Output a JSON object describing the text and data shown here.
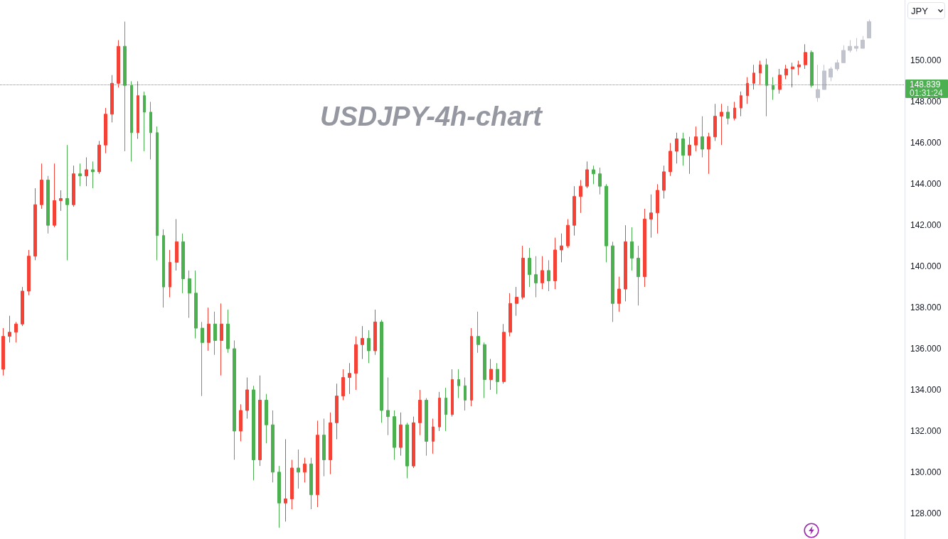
{
  "chart_data": {
    "type": "candlestick",
    "title": "USDJPY-4h-chart",
    "ylabel": "JPY",
    "annotations": [
      "01:31:24"
    ],
    "tick_labels": "y",
    "ylim": [
      126.75,
      152.95
    ],
    "yticks": [
      {
        "value": 128,
        "label": "128.000"
      },
      {
        "value": 130,
        "label": "130.000"
      },
      {
        "value": 132,
        "label": "132.000"
      },
      {
        "value": 134,
        "label": "134.000"
      },
      {
        "value": 136,
        "label": "136.000"
      },
      {
        "value": 138,
        "label": "138.000"
      },
      {
        "value": 140,
        "label": "140.000"
      },
      {
        "value": 142,
        "label": "142.000"
      },
      {
        "value": 144,
        "label": "144.000"
      },
      {
        "value": 146,
        "label": "146.000"
      },
      {
        "value": 148,
        "label": "148.000"
      },
      {
        "value": 150,
        "label": "150.000"
      }
    ],
    "ref_lines": [
      {
        "axis": "y",
        "value": 148.839,
        "label": "148.839",
        "color": "#4caf50",
        "line_style": "dotted"
      }
    ],
    "categories": [
      null,
      null,
      null,
      null,
      null,
      null,
      null,
      null,
      null,
      null,
      null,
      null,
      null,
      null,
      null,
      null,
      null,
      null,
      null,
      null,
      null,
      null,
      null,
      null,
      null,
      null,
      null,
      null,
      null,
      null,
      null,
      null,
      null,
      null,
      null,
      null,
      null,
      null,
      null,
      null,
      null,
      null,
      null,
      null,
      null,
      null,
      null,
      null,
      null,
      null,
      null,
      null,
      null,
      null,
      null,
      null,
      null,
      null,
      null,
      null,
      null,
      null,
      null,
      null,
      null,
      null,
      null,
      null,
      null,
      null,
      null,
      null,
      null,
      null,
      null,
      null,
      null,
      null,
      null,
      null,
      null,
      null,
      null,
      null,
      null,
      null,
      null,
      null,
      null,
      null,
      null,
      null,
      null,
      null,
      null,
      null,
      null,
      null,
      null,
      null,
      null,
      null,
      null,
      null,
      null,
      null,
      null,
      null,
      null,
      null,
      null,
      null,
      null,
      null,
      null,
      null,
      null,
      null,
      null,
      null,
      null,
      null,
      null,
      null,
      null,
      null,
      null,
      null,
      null,
      null,
      null,
      null,
      null,
      null,
      null,
      null,
      null,
      null,
      null,
      null,
      null
    ],
    "series": [
      {
        "ohlc": [
          [
            135.0,
            137.0,
            134.7,
            136.6
          ],
          [
            136.6,
            137.6,
            136.3,
            136.8
          ],
          [
            136.8,
            137.3,
            136.3,
            137.2
          ],
          [
            137.2,
            139.0,
            137.1,
            138.8
          ],
          [
            138.8,
            140.8,
            138.6,
            140.5
          ],
          [
            140.5,
            143.8,
            140.3,
            143.0
          ],
          [
            143.0,
            145.0,
            142.8,
            144.2
          ],
          [
            144.2,
            144.4,
            141.6,
            142.0
          ],
          [
            142.0,
            145.0,
            141.9,
            143.2
          ],
          [
            143.2,
            143.7,
            142.7,
            143.3
          ],
          [
            143.3,
            145.9,
            140.3,
            143.0
          ],
          [
            143.0,
            144.9,
            142.9,
            144.5
          ],
          [
            144.5,
            145.0,
            143.9,
            144.4
          ],
          [
            144.4,
            145.3,
            143.9,
            144.7
          ],
          [
            144.7,
            145.1,
            143.8,
            144.6
          ],
          [
            144.6,
            146.1,
            144.5,
            145.9
          ],
          [
            145.9,
            147.7,
            145.5,
            147.4
          ],
          [
            147.4,
            149.3,
            147.0,
            148.9
          ],
          [
            148.9,
            151.0,
            148.7,
            150.7
          ],
          [
            150.7,
            151.9,
            145.6,
            148.8
          ],
          [
            148.8,
            149.0,
            145.1,
            146.5
          ],
          [
            146.5,
            149.0,
            146.2,
            148.3
          ],
          [
            148.3,
            148.5,
            145.6,
            147.5
          ],
          [
            147.5,
            148.0,
            145.2,
            146.5
          ],
          [
            146.5,
            146.8,
            140.3,
            141.5
          ],
          [
            141.5,
            141.8,
            138.0,
            139.0
          ],
          [
            139.0,
            140.8,
            138.5,
            140.2
          ],
          [
            140.2,
            142.3,
            139.8,
            141.2
          ],
          [
            141.2,
            141.6,
            138.7,
            139.4
          ],
          [
            139.4,
            139.8,
            137.5,
            138.7
          ],
          [
            138.7,
            139.8,
            136.5,
            137.0
          ],
          [
            137.0,
            137.3,
            133.7,
            136.3
          ],
          [
            136.3,
            138.0,
            135.9,
            137.2
          ],
          [
            137.2,
            137.8,
            135.7,
            136.4
          ],
          [
            136.4,
            138.2,
            134.7,
            137.2
          ],
          [
            137.2,
            137.9,
            135.8,
            136.0
          ],
          [
            136.0,
            136.4,
            130.6,
            132.0
          ],
          [
            132.0,
            133.3,
            131.5,
            133.0
          ],
          [
            133.0,
            134.6,
            132.6,
            134.0
          ],
          [
            134.0,
            134.2,
            129.6,
            130.6
          ],
          [
            130.6,
            134.7,
            130.3,
            133.5
          ],
          [
            133.5,
            133.8,
            131.4,
            132.3
          ],
          [
            132.3,
            133.0,
            129.5,
            130.0
          ],
          [
            130.0,
            130.3,
            127.3,
            128.5
          ],
          [
            128.5,
            131.6,
            127.6,
            128.7
          ],
          [
            128.7,
            130.6,
            128.2,
            130.2
          ],
          [
            130.2,
            131.1,
            129.2,
            130.0
          ],
          [
            130.0,
            130.7,
            129.5,
            130.4
          ],
          [
            130.4,
            130.7,
            128.2,
            128.9
          ],
          [
            128.9,
            132.5,
            128.3,
            131.8
          ],
          [
            131.8,
            132.6,
            129.8,
            130.6
          ],
          [
            130.6,
            132.9,
            129.9,
            132.4
          ],
          [
            132.4,
            134.3,
            131.6,
            133.7
          ],
          [
            133.7,
            135.0,
            133.5,
            134.6
          ],
          [
            134.6,
            135.3,
            133.8,
            134.8
          ],
          [
            134.8,
            136.6,
            134.0,
            136.2
          ],
          [
            136.2,
            137.1,
            135.5,
            136.5
          ],
          [
            136.5,
            136.9,
            135.3,
            135.9
          ],
          [
            135.9,
            137.9,
            135.7,
            137.3
          ],
          [
            137.3,
            137.4,
            132.4,
            133.0
          ],
          [
            133.0,
            134.6,
            131.8,
            132.7
          ],
          [
            132.7,
            133.0,
            130.6,
            131.2
          ],
          [
            131.2,
            132.9,
            130.8,
            132.3
          ],
          [
            132.3,
            132.4,
            129.7,
            130.3
          ],
          [
            130.3,
            132.7,
            130.2,
            132.4
          ],
          [
            132.4,
            134.0,
            131.8,
            133.5
          ],
          [
            133.5,
            133.6,
            130.8,
            131.5
          ],
          [
            131.5,
            132.6,
            130.9,
            132.2
          ],
          [
            132.2,
            133.9,
            132.0,
            133.6
          ],
          [
            133.6,
            134.1,
            132.0,
            132.8
          ],
          [
            132.8,
            135.0,
            132.7,
            134.5
          ],
          [
            134.5,
            135.0,
            133.6,
            134.2
          ],
          [
            134.2,
            134.6,
            133.0,
            133.5
          ],
          [
            133.5,
            137.0,
            133.2,
            136.6
          ],
          [
            136.6,
            137.8,
            135.8,
            136.2
          ],
          [
            136.2,
            136.3,
            133.6,
            134.5
          ],
          [
            134.5,
            135.5,
            134.0,
            135.0
          ],
          [
            135.0,
            135.3,
            133.8,
            134.4
          ],
          [
            134.4,
            137.2,
            134.3,
            136.8
          ],
          [
            136.8,
            138.7,
            136.6,
            138.2
          ],
          [
            138.2,
            139.0,
            137.6,
            138.5
          ],
          [
            138.5,
            141.0,
            138.4,
            140.4
          ],
          [
            140.4,
            140.9,
            139.0,
            139.6
          ],
          [
            139.6,
            140.5,
            138.5,
            139.2
          ],
          [
            139.2,
            140.5,
            138.9,
            139.8
          ],
          [
            139.8,
            140.3,
            138.8,
            139.3
          ],
          [
            139.3,
            141.4,
            138.9,
            140.8
          ],
          [
            140.8,
            141.6,
            140.2,
            141.0
          ],
          [
            141.0,
            142.3,
            140.9,
            142.0
          ],
          [
            142.0,
            143.9,
            141.5,
            143.4
          ],
          [
            143.4,
            144.2,
            142.6,
            143.9
          ],
          [
            143.9,
            145.1,
            143.8,
            144.7
          ],
          [
            144.7,
            144.9,
            144.0,
            144.5
          ],
          [
            144.5,
            144.8,
            143.5,
            143.9
          ],
          [
            143.9,
            144.0,
            140.2,
            141.0
          ],
          [
            141.0,
            141.2,
            137.3,
            138.2
          ],
          [
            138.2,
            139.5,
            137.8,
            138.9
          ],
          [
            138.9,
            142.0,
            138.3,
            141.2
          ],
          [
            141.2,
            141.9,
            139.8,
            140.4
          ],
          [
            140.4,
            141.0,
            138.1,
            139.5
          ],
          [
            139.5,
            142.8,
            139.0,
            142.3
          ],
          [
            142.3,
            143.5,
            141.4,
            142.6
          ],
          [
            142.6,
            144.0,
            141.6,
            143.7
          ],
          [
            143.7,
            144.9,
            143.3,
            144.6
          ],
          [
            144.6,
            146.0,
            144.4,
            145.6
          ],
          [
            145.6,
            146.5,
            145.0,
            146.2
          ],
          [
            146.2,
            146.5,
            144.9,
            145.4
          ],
          [
            145.4,
            146.3,
            144.5,
            145.9
          ],
          [
            145.9,
            146.8,
            145.6,
            146.3
          ],
          [
            146.3,
            147.3,
            145.3,
            145.7
          ],
          [
            145.7,
            146.5,
            144.5,
            146.3
          ],
          [
            146.3,
            147.9,
            146.1,
            147.3
          ],
          [
            147.3,
            147.9,
            145.9,
            147.5
          ],
          [
            147.5,
            147.8,
            146.9,
            147.2
          ],
          [
            147.2,
            148.0,
            147.1,
            147.7
          ],
          [
            147.7,
            148.5,
            147.3,
            148.3
          ],
          [
            148.3,
            149.2,
            147.9,
            148.9
          ],
          [
            148.9,
            149.8,
            148.6,
            149.4
          ],
          [
            149.4,
            150.0,
            148.8,
            149.8
          ],
          [
            149.8,
            150.1,
            147.3,
            148.8
          ],
          [
            148.8,
            149.2,
            148.1,
            148.6
          ],
          [
            148.6,
            149.6,
            148.4,
            149.3
          ],
          [
            149.3,
            149.8,
            149.1,
            149.6
          ],
          [
            149.6,
            149.9,
            148.7,
            149.7
          ],
          [
            149.7,
            150.0,
            149.3,
            149.8
          ],
          [
            149.8,
            150.8,
            149.6,
            150.4
          ],
          [
            150.4,
            150.5,
            148.7,
            148.8
          ],
          null,
          null,
          null,
          null,
          null,
          null,
          null,
          null,
          null,
          null,
          null,
          null,
          null,
          null
        ],
        "colors": [
          "#f44336",
          "#f44336",
          "#f44336",
          "#f44336",
          "#f44336",
          "#f44336",
          "#f44336",
          "#4caf50",
          "#f44336",
          "#f44336",
          "#4caf50",
          "#f44336",
          "#4caf50",
          "#f44336",
          "#4caf50",
          "#f44336",
          "#f44336",
          "#f44336",
          "#f44336",
          "#4caf50",
          "#4caf50",
          "#f44336",
          "#4caf50",
          "#4caf50",
          "#4caf50",
          "#4caf50",
          "#f44336",
          "#f44336",
          "#4caf50",
          "#4caf50",
          "#4caf50",
          "#4caf50",
          "#f44336",
          "#4caf50",
          "#f44336",
          "#4caf50",
          "#4caf50",
          "#f44336",
          "#f44336",
          "#4caf50",
          "#f44336",
          "#4caf50",
          "#4caf50",
          "#4caf50",
          "#f44336",
          "#f44336",
          "#4caf50",
          "#f44336",
          "#4caf50",
          "#f44336",
          "#4caf50",
          "#f44336",
          "#f44336",
          "#f44336",
          "#f44336",
          "#f44336",
          "#f44336",
          "#4caf50",
          "#f44336",
          "#4caf50",
          "#4caf50",
          "#4caf50",
          "#f44336",
          "#4caf50",
          "#f44336",
          "#f44336",
          "#4caf50",
          "#f44336",
          "#f44336",
          "#4caf50",
          "#f44336",
          "#4caf50",
          "#4caf50",
          "#f44336",
          "#4caf50",
          "#4caf50",
          "#f44336",
          "#4caf50",
          "#f44336",
          "#f44336",
          "#f44336",
          "#f44336",
          "#4caf50",
          "#4caf50",
          "#f44336",
          "#4caf50",
          "#f44336",
          "#f44336",
          "#f44336",
          "#f44336",
          "#f44336",
          "#f44336",
          "#4caf50",
          "#4caf50",
          "#4caf50",
          "#4caf50",
          "#f44336",
          "#f44336",
          "#4caf50",
          "#4caf50",
          "#f44336",
          "#f44336",
          "#f44336",
          "#f44336",
          "#f44336",
          "#f44336",
          "#4caf50",
          "#f44336",
          "#f44336",
          "#4caf50",
          "#f44336",
          "#f44336",
          "#f44336",
          "#4caf50",
          "#f44336",
          "#f44336",
          "#f44336",
          "#f44336",
          "#f44336",
          "#4caf50",
          "#4caf50",
          "#f44336",
          "#f44336",
          "#f44336",
          "#f44336",
          "#f44336",
          "#4caf50",
          null,
          null,
          null,
          null,
          null,
          null,
          null,
          null,
          null,
          null,
          null,
          null,
          null,
          null
        ]
      },
      {
        "color": "#c1c4cd",
        "ohlc": [
          null,
          null,
          null,
          null,
          null,
          null,
          null,
          null,
          null,
          null,
          null,
          null,
          null,
          null,
          null,
          null,
          null,
          null,
          null,
          null,
          null,
          null,
          null,
          null,
          null,
          null,
          null,
          null,
          null,
          null,
          null,
          null,
          null,
          null,
          null,
          null,
          null,
          null,
          null,
          null,
          null,
          null,
          null,
          null,
          null,
          null,
          null,
          null,
          null,
          null,
          null,
          null,
          null,
          null,
          null,
          null,
          null,
          null,
          null,
          null,
          null,
          null,
          null,
          null,
          null,
          null,
          null,
          null,
          null,
          null,
          null,
          null,
          null,
          null,
          null,
          null,
          null,
          null,
          null,
          null,
          null,
          null,
          null,
          null,
          null,
          null,
          null,
          null,
          null,
          null,
          null,
          null,
          null,
          null,
          null,
          null,
          null,
          null,
          null,
          null,
          null,
          null,
          null,
          null,
          null,
          null,
          null,
          null,
          null,
          null,
          null,
          null,
          null,
          null,
          null,
          null,
          null,
          null,
          null,
          null,
          null,
          null,
          null,
          null,
          null,
          null,
          null,
          [
            148.2,
            149.8,
            148.0,
            148.6
          ],
          [
            148.6,
            149.8,
            148.6,
            149.5
          ],
          [
            149.2,
            149.7,
            149.0,
            149.6
          ],
          [
            149.6,
            150.05,
            149.5,
            149.9
          ],
          [
            149.9,
            150.75,
            149.9,
            150.5
          ],
          [
            150.5,
            151.0,
            150.4,
            150.7
          ],
          [
            150.7,
            151.1,
            150.45,
            150.6
          ],
          [
            150.6,
            151.2,
            150.6,
            151.0
          ],
          [
            151.1,
            152.0,
            151.1,
            151.9
          ],
          null,
          null,
          null,
          null,
          null
        ]
      }
    ]
  }
}
